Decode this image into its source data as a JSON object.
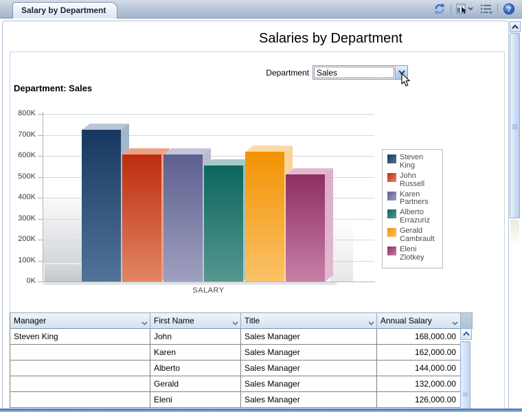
{
  "window": {
    "tab_title": "Salary by Department",
    "toolbar_icons": [
      "refresh-icon",
      "page-select-icon",
      "list-menu-icon",
      "help-icon"
    ]
  },
  "page": {
    "title": "Salaries by Department",
    "department_label": "Department",
    "department_value": "Sales",
    "section_title": "Department: Sales"
  },
  "chart_data": {
    "type": "bar",
    "title": "",
    "xlabel": "SALARY",
    "ylabel": "",
    "ylim": [
      0,
      800000
    ],
    "ytick_labels": [
      "0K",
      "100K",
      "200K",
      "300K",
      "400K",
      "500K",
      "600K",
      "700K",
      "800K"
    ],
    "grid": true,
    "legend_position": "right",
    "series": [
      {
        "name": "Steven King",
        "name_lines": [
          "Steven King"
        ],
        "value": 725000,
        "color_top": "#173760",
        "color_bottom": "#527399",
        "color_side": "#a3b5cb",
        "color_face": "#b9c6d8"
      },
      {
        "name": "John Russell",
        "name_lines": [
          "John",
          "Russell"
        ],
        "value": 605000,
        "color_top": "#bc2c0e",
        "color_bottom": "#e28663",
        "color_side": "#eda386",
        "color_face": "#eba183"
      },
      {
        "name": "Karen Partners",
        "name_lines": [
          "Karen",
          "Partners"
        ],
        "value": 605000,
        "color_top": "#5d5f8f",
        "color_bottom": "#9fa0bf",
        "color_side": "#babbd3",
        "color_face": "#c4c5da"
      },
      {
        "name": "Alberto Errazuriz",
        "name_lines": [
          "Alberto",
          "Errazuriz"
        ],
        "value": 555000,
        "color_top": "#0a665e",
        "color_bottom": "#579790",
        "color_side": "#93bfb8",
        "color_face": "#a6cbc5"
      },
      {
        "name": "Gerald Cambrault",
        "name_lines": [
          "Gerald",
          "Cambrault"
        ],
        "value": 620000,
        "color_top": "#f29204",
        "color_bottom": "#fbc267",
        "color_side": "#f9d497",
        "color_face": "#fcdaa6"
      },
      {
        "name": "Eleni Zlotkey",
        "name_lines": [
          "Eleni",
          "Zlotkey"
        ],
        "value": 510000,
        "color_top": "#8e2e62",
        "color_bottom": "#c77fa6",
        "color_side": "#dcadc9",
        "color_face": "#e2b8d0"
      }
    ]
  },
  "table": {
    "columns": [
      "Manager",
      "First Name",
      "Title",
      "Annual Salary"
    ],
    "rows": [
      {
        "manager": "Steven King",
        "first_name": "John",
        "title": "Sales Manager",
        "annual_salary": "168,000.00"
      },
      {
        "manager": "",
        "first_name": "Karen",
        "title": "Sales Manager",
        "annual_salary": "162,000.00"
      },
      {
        "manager": "",
        "first_name": "Alberto",
        "title": "Sales Manager",
        "annual_salary": "144,000.00"
      },
      {
        "manager": "",
        "first_name": "Gerald",
        "title": "Sales Manager",
        "annual_salary": "132,000.00"
      },
      {
        "manager": "",
        "first_name": "Eleni",
        "title": "Sales Manager",
        "annual_salary": "126,000.00"
      }
    ]
  },
  "colors": {
    "accent_blue": "#3a6ad0",
    "header_gradient_top": "#eff5fb",
    "header_gradient_bottom": "#d2e1f1",
    "scroll_thumb": "#c6d9f2"
  }
}
